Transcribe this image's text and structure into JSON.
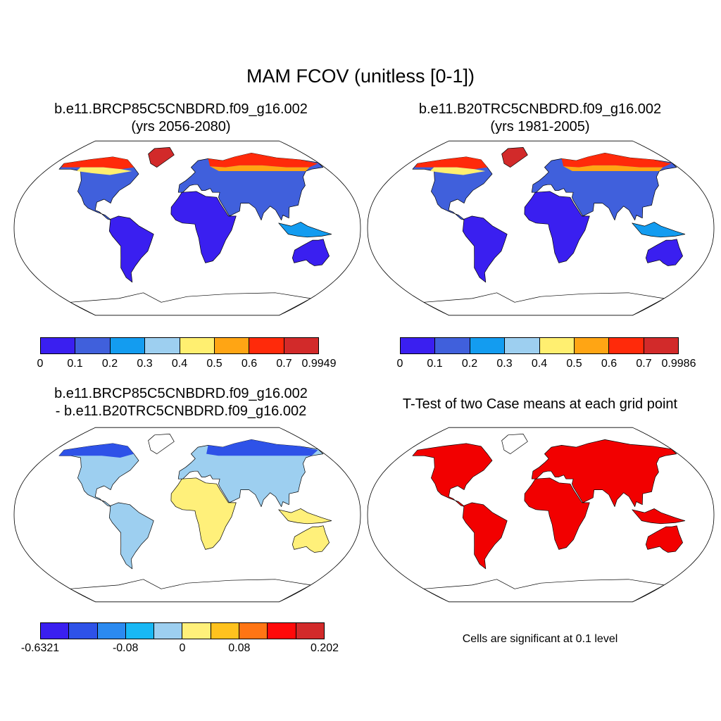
{
  "title": "MAM FCOV (unitless [0-1])",
  "panels": [
    {
      "id": "p1",
      "title_line1": "b.e11.BRCP85C5CNBDRD.f09_g16.002",
      "title_line2": "(yrs 2056-2080)",
      "colorbar": {
        "colors": [
          "#3a1ff0",
          "#4060dc",
          "#139cf0",
          "#9dcff0",
          "#ffef70",
          "#ffa514",
          "#ff2a0a",
          "#d22a2a"
        ],
        "labels": [
          "0",
          "0.1",
          "0.2",
          "0.3",
          "0.4",
          "0.5",
          "0.6",
          "0.7",
          "0.9949"
        ]
      }
    },
    {
      "id": "p2",
      "title_line1": "b.e11.B20TRC5CNBDRD.f09_g16.002",
      "title_line2": "(yrs 1981-2005)",
      "colorbar": {
        "colors": [
          "#3a1ff0",
          "#4060dc",
          "#139cf0",
          "#9dcff0",
          "#ffef70",
          "#ffa514",
          "#ff2a0a",
          "#d22a2a"
        ],
        "labels": [
          "0",
          "0.1",
          "0.2",
          "0.3",
          "0.4",
          "0.5",
          "0.6",
          "0.7",
          "0.9986"
        ]
      }
    },
    {
      "id": "p3",
      "title_line1": "b.e11.BRCP85C5CNBDRD.f09_g16.002",
      "title_line2": "- b.e11.B20TRC5CNBDRD.f09_g16.002",
      "colorbar": {
        "colors": [
          "#3a1ff0",
          "#2e52e8",
          "#2b8af0",
          "#19b8f5",
          "#9dcff0",
          "#fff07a",
          "#ffc21e",
          "#ff7514",
          "#ff0a0a",
          "#d22a2a"
        ],
        "labels": [
          "-0.6321",
          "-0.08",
          "0",
          "0.08",
          "0.202"
        ]
      }
    },
    {
      "id": "p4",
      "title_line1": "T-Test of two Case means at each grid point",
      "note": "Cells are significant at 0.1 level",
      "fill_color": "#f20000"
    }
  ]
}
